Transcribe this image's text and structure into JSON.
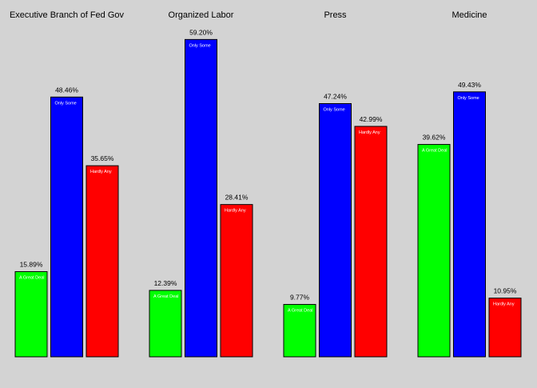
{
  "chart_data": {
    "type": "bar",
    "categories": [
      "A Great Deal",
      "Only Some",
      "Hardly Any"
    ],
    "bar_colors": [
      "#00ff00",
      "#0000ff",
      "#ff0000"
    ],
    "panels": [
      {
        "title": "Executive Branch of Fed Gov",
        "values": [
          15.89,
          48.46,
          35.65
        ],
        "value_labels": [
          "15.89%",
          "48.46%",
          "35.65%"
        ]
      },
      {
        "title": "Organized Labor",
        "values": [
          12.39,
          59.2,
          28.41
        ],
        "value_labels": [
          "12.39%",
          "59.20%",
          "28.41%"
        ]
      },
      {
        "title": "Press",
        "values": [
          9.77,
          47.24,
          42.99
        ],
        "value_labels": [
          "9.77%",
          "47.24%",
          "42.99%"
        ]
      },
      {
        "title": "Medicine",
        "values": [
          39.62,
          49.43,
          10.95
        ],
        "value_labels": [
          "39.62%",
          "49.43%",
          "10.95%"
        ]
      }
    ],
    "grid": false,
    "legend": "none"
  },
  "colors": {
    "background": "#d3d3d3"
  }
}
